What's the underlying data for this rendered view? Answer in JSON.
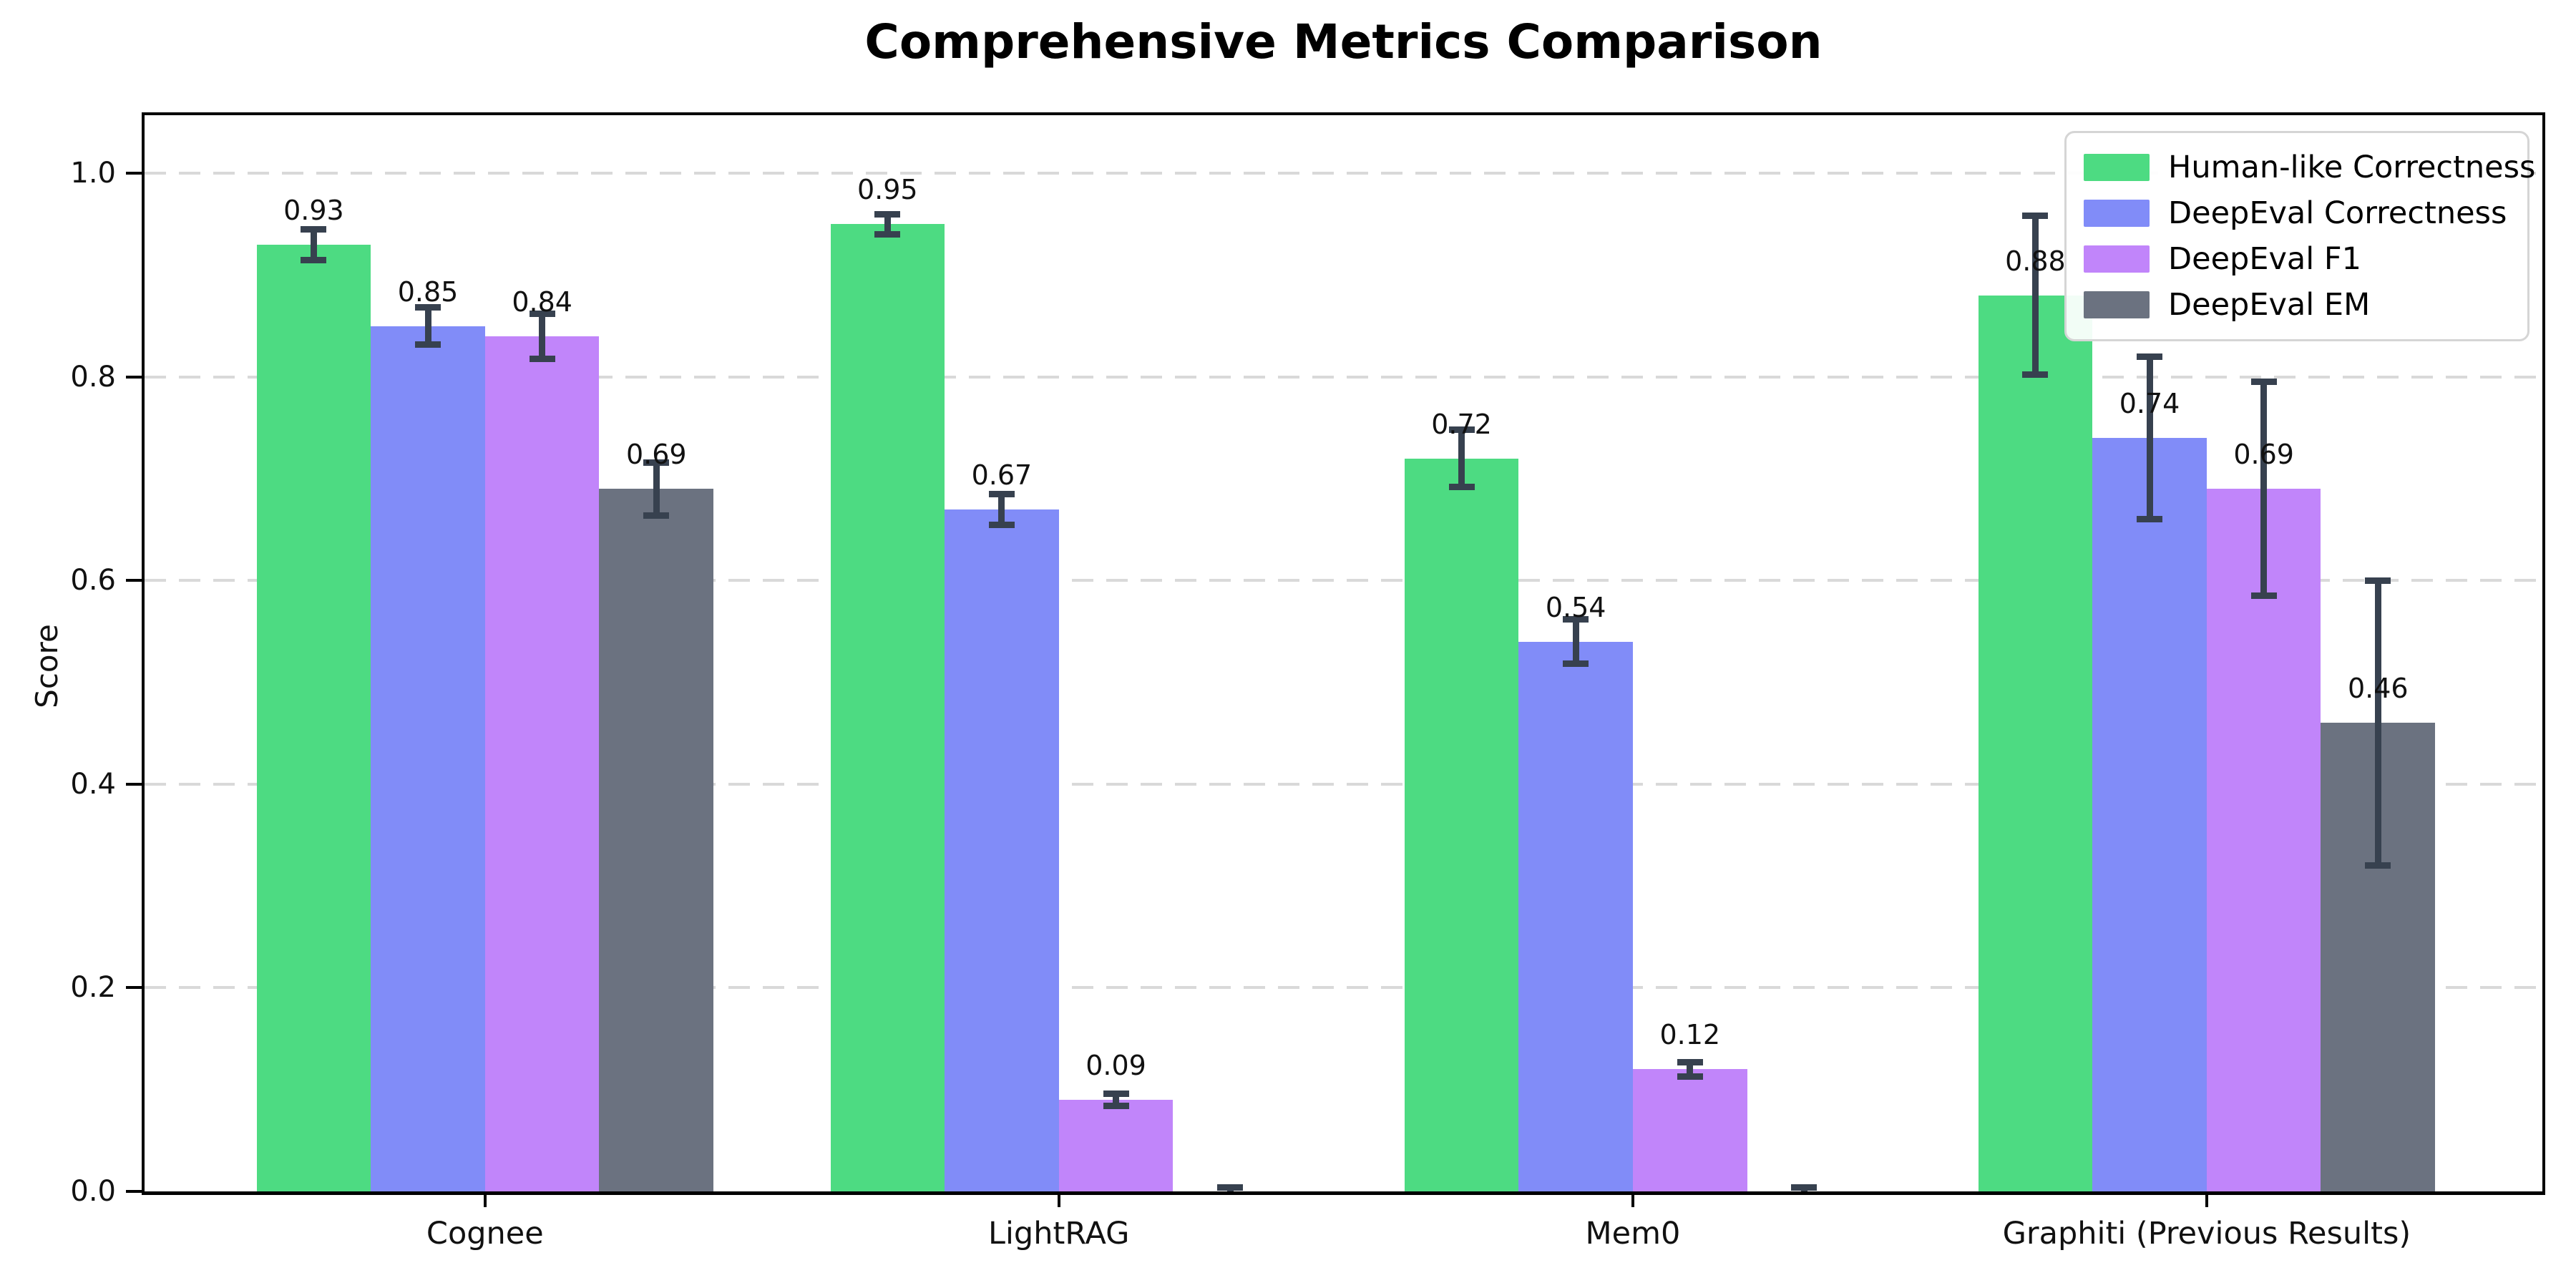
{
  "chart_data": {
    "type": "bar",
    "title": "Comprehensive Metrics Comparison",
    "ylabel": "Score",
    "xlabel": "",
    "ylim": [
      0,
      1.057
    ],
    "yticks": [
      "0.0",
      "0.2",
      "0.4",
      "0.6",
      "0.8",
      "1.0"
    ],
    "grid": "horizontal-dashed",
    "legend_position": "upper-right",
    "categories": [
      "Cognee",
      "LightRAG",
      "Mem0",
      "Graphiti (Previous Results)"
    ],
    "series": [
      {
        "name": "Human-like Correctness",
        "color": "#4ddb82",
        "values": [
          0.93,
          0.95,
          0.72,
          0.88
        ],
        "errors": [
          0.015,
          0.01,
          0.028,
          0.078
        ],
        "labels": [
          "0.93",
          "0.95",
          "0.72",
          "0.88"
        ]
      },
      {
        "name": "DeepEval Correctness",
        "color": "#818cf8",
        "values": [
          0.85,
          0.67,
          0.54,
          0.74
        ],
        "errors": [
          0.018,
          0.015,
          0.022,
          0.08
        ],
        "labels": [
          "0.85",
          "0.67",
          "0.54",
          "0.74"
        ]
      },
      {
        "name": "DeepEval F1",
        "color": "#c185fa",
        "values": [
          0.84,
          0.09,
          0.12,
          0.69
        ],
        "errors": [
          0.022,
          0.006,
          0.007,
          0.105
        ],
        "labels": [
          "0.84",
          "0.09",
          "0.12",
          "0.69"
        ]
      },
      {
        "name": "DeepEval EM",
        "color": "#6b7280",
        "values": [
          0.69,
          0.0,
          0.0,
          0.46
        ],
        "errors": [
          0.026,
          0.004,
          0.004,
          0.14
        ],
        "labels": [
          "0.69",
          "",
          "",
          "0.46"
        ]
      }
    ],
    "style": {
      "error_bar_color": "#37414f",
      "grid_color": "#d9d9d9",
      "spine_color": "#000000",
      "background": "#ffffff"
    }
  }
}
